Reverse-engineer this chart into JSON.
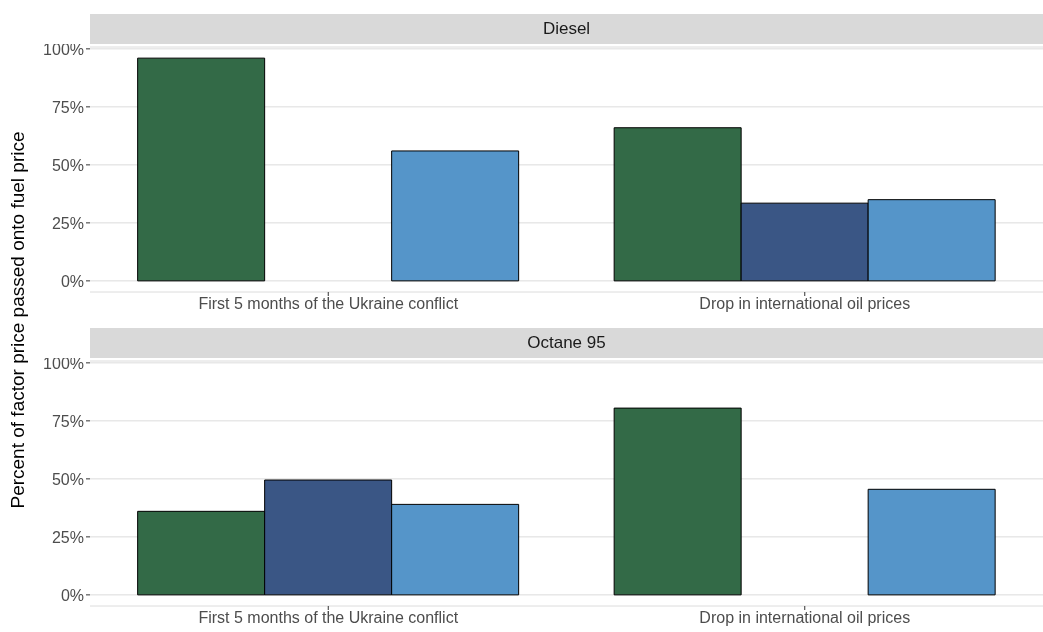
{
  "chart_data": [
    {
      "type": "bar",
      "title": "Diesel",
      "ylabel": "Percent of factor price passed onto fuel price",
      "categories": [
        "First 5 months of the Ukraine conflict",
        "Drop in international oil prices"
      ],
      "series": [
        {
          "color": "#336a47",
          "values": [
            96,
            66
          ]
        },
        {
          "color": "#3a5685",
          "values": [
            null,
            33.5
          ]
        },
        {
          "color": "#5595c9",
          "values": [
            56,
            35
          ]
        }
      ],
      "ylim": [
        -4.8,
        100.8
      ],
      "yticks": [
        {
          "value": 0,
          "label": "0%"
        },
        {
          "value": 25,
          "label": "25%"
        },
        {
          "value": 50,
          "label": "50%"
        },
        {
          "value": 75,
          "label": "75%"
        },
        {
          "value": 100,
          "label": "100%"
        }
      ],
      "grid": "y",
      "legend": false
    },
    {
      "type": "bar",
      "title": "Octane 95",
      "categories": [
        "First 5 months of the Ukraine conflict",
        "Drop in international oil prices"
      ],
      "series": [
        {
          "color": "#336a47",
          "values": [
            36,
            80.5
          ]
        },
        {
          "color": "#3a5685",
          "values": [
            49.5,
            null
          ]
        },
        {
          "color": "#5595c9",
          "values": [
            39,
            45.5
          ]
        }
      ],
      "ylim": [
        -4.8,
        100.8
      ],
      "yticks": [
        {
          "value": 0,
          "label": "0%"
        },
        {
          "value": 25,
          "label": "25%"
        },
        {
          "value": 50,
          "label": "50%"
        },
        {
          "value": 75,
          "label": "75%"
        },
        {
          "value": 100,
          "label": "100%"
        }
      ],
      "grid": "y",
      "legend": false
    }
  ]
}
